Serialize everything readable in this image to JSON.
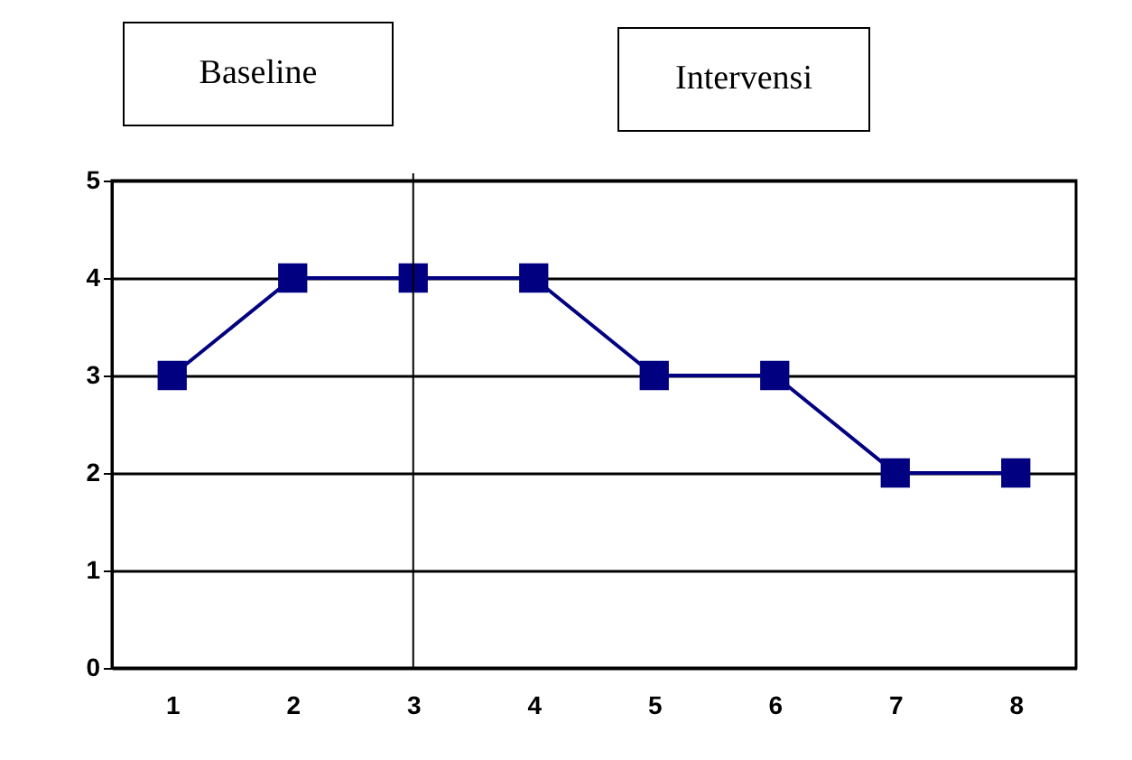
{
  "chart_data": {
    "type": "line",
    "annotations": [
      "Baseline",
      "Intervensi"
    ],
    "categories": [
      "1",
      "2",
      "3",
      "4",
      "5",
      "6",
      "7",
      "8"
    ],
    "series": [
      {
        "color": "#000080",
        "values": [
          3,
          4,
          4,
          4,
          3,
          3,
          2,
          2
        ]
      }
    ],
    "ylim": [
      0,
      5
    ],
    "yticks": [
      0,
      1,
      2,
      3,
      4,
      5
    ],
    "grid": "y",
    "marker": "square",
    "line_style": "solid",
    "ref_lines": [
      {
        "axis": "x",
        "value": "3",
        "color": "#000000"
      }
    ]
  }
}
